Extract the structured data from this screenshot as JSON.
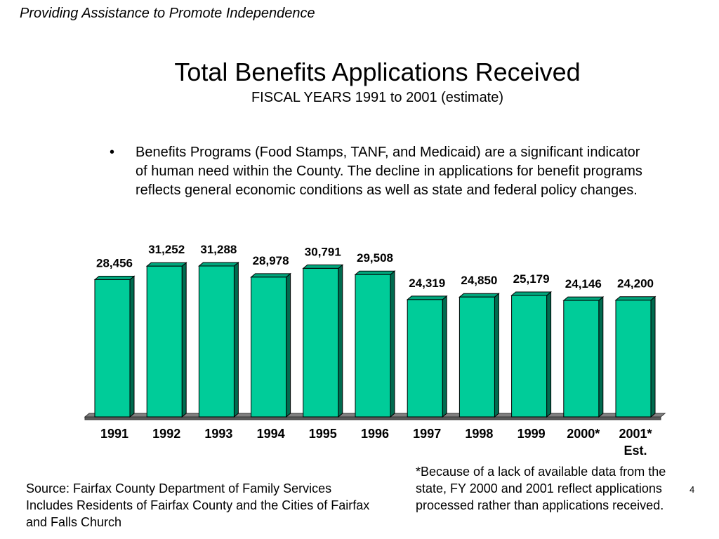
{
  "header": {
    "tagline": "Providing Assistance to Promote Independence"
  },
  "slide": {
    "title": "Total Benefits Applications Received",
    "subtitle": "FISCAL YEARS 1991 to 2001 (estimate)",
    "bullet": "Benefits Programs (Food Stamps, TANF, and Medicaid) are a significant indicator of human need within the County.  The decline in applications for benefit programs reflects general economic conditions as well as state and federal policy changes.",
    "footnote": "*Because of a lack of available data from the state, FY 2000 and 2001 reflect applications processed rather than applications received.",
    "source_line1": "Source:  Fairfax County Department of Family Services",
    "source_line2": "Includes Residents of Fairfax County and the Cities of Fairfax and Falls Church",
    "page_number": "4"
  },
  "colors": {
    "bar": "#00CC99",
    "bar_dark": "#006B4F",
    "floor": "#808080"
  },
  "chart_data": {
    "type": "bar",
    "categories": [
      "1991",
      "1992",
      "1993",
      "1994",
      "1995",
      "1996",
      "1997",
      "1998",
      "1999",
      "2000*",
      "2001*\nEst."
    ],
    "values": [
      28456,
      31252,
      31288,
      28978,
      30791,
      29508,
      24319,
      24850,
      25179,
      24146,
      24200
    ],
    "data_labels": [
      "28,456",
      "31,252",
      "31,288",
      "28,978",
      "30,791",
      "29,508",
      "24,319",
      "24,850",
      "25,179",
      "24,146",
      "24,200"
    ],
    "ylim": [
      0,
      35000
    ],
    "grid": false,
    "title": "",
    "xlabel": "",
    "ylabel": ""
  }
}
